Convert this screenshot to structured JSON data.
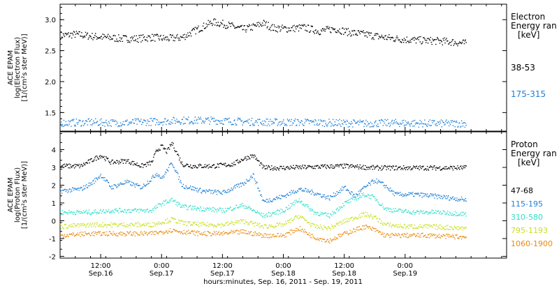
{
  "chart_data": [
    {
      "type": "scatter",
      "panel": "electron",
      "ylabel_lines": [
        "ACE EPAM",
        "log(Electron Flux)",
        "[1/(cm²s ster MeV)]"
      ],
      "ylim": [
        1.2,
        3.25
      ],
      "yticks": [
        1.5,
        2.0,
        2.5,
        3.0
      ],
      "ytick_labels": [
        "1.5",
        "2.0",
        "2.5",
        "3.0"
      ],
      "legend_title": [
        "Electron",
        "Energy ran",
        "[keV]"
      ],
      "series": [
        {
          "name": "38-53",
          "color": "#000000",
          "x": [
            0,
            3,
            6,
            9,
            12,
            15,
            18,
            21,
            24,
            27,
            30,
            33,
            36,
            38,
            40,
            42,
            45,
            48,
            51,
            54,
            57,
            60,
            63,
            66,
            69,
            72,
            75,
            78,
            80
          ],
          "y": [
            2.75,
            2.77,
            2.74,
            2.72,
            2.7,
            2.7,
            2.72,
            2.7,
            2.72,
            2.85,
            2.97,
            2.92,
            2.85,
            2.89,
            2.95,
            2.87,
            2.86,
            2.88,
            2.82,
            2.86,
            2.8,
            2.77,
            2.73,
            2.7,
            2.68,
            2.67,
            2.66,
            2.64,
            2.62
          ]
        },
        {
          "name": "175-315",
          "color": "#1f7fd6",
          "x": [
            0,
            6,
            12,
            18,
            24,
            30,
            36,
            42,
            48,
            54,
            60,
            66,
            72,
            80
          ],
          "y": [
            1.34,
            1.35,
            1.34,
            1.36,
            1.38,
            1.38,
            1.36,
            1.35,
            1.35,
            1.34,
            1.33,
            1.34,
            1.33,
            1.33
          ]
        }
      ]
    },
    {
      "type": "scatter",
      "panel": "proton",
      "ylabel_lines": [
        "ACE EPAM",
        "log(Proton Flux)",
        "[1/(cm²s ster MeV)]"
      ],
      "ylim": [
        -2.1,
        5.0
      ],
      "yticks": [
        -2,
        -1,
        0,
        1,
        2,
        3,
        4
      ],
      "ytick_labels": [
        "-2",
        "-1",
        "0",
        "1",
        "2",
        "3",
        "4"
      ],
      "legend_title": [
        "Proton",
        "Energy ran",
        "[keV]"
      ],
      "series": [
        {
          "name": "47-68",
          "color": "#000000",
          "x": [
            0,
            4,
            6,
            8,
            10,
            13,
            16,
            18,
            19,
            20,
            21,
            22,
            24,
            26,
            30,
            34,
            36,
            38,
            40,
            44,
            50,
            56,
            62,
            68,
            74,
            80
          ],
          "y": [
            3.1,
            3.1,
            3.4,
            3.7,
            3.3,
            3.4,
            3.1,
            3.3,
            4.0,
            4.2,
            3.9,
            4.4,
            3.2,
            3.1,
            3.1,
            3.2,
            3.5,
            3.7,
            3.0,
            3.0,
            3.05,
            3.1,
            3.0,
            3.0,
            3.0,
            3.0
          ]
        },
        {
          "name": "115-195",
          "color": "#1f7fd6",
          "x": [
            0,
            4,
            6,
            8,
            10,
            13,
            16,
            18,
            19,
            20,
            22,
            24,
            28,
            32,
            36,
            38,
            40,
            44,
            47,
            50,
            53,
            56,
            58,
            60,
            62,
            64,
            66,
            68,
            70,
            74,
            80
          ],
          "y": [
            1.7,
            1.8,
            2.1,
            2.6,
            1.9,
            2.2,
            1.9,
            2.4,
            2.7,
            2.4,
            3.3,
            2.0,
            1.7,
            1.6,
            2.1,
            2.6,
            1.1,
            1.4,
            1.8,
            1.6,
            1.3,
            1.9,
            1.4,
            1.9,
            2.3,
            2.0,
            1.5,
            1.5,
            1.5,
            1.4,
            1.2
          ]
        },
        {
          "name": "310-580",
          "color": "#2fe0c8",
          "x": [
            0,
            6,
            10,
            14,
            18,
            20,
            22,
            24,
            28,
            32,
            36,
            40,
            44,
            47,
            50,
            53,
            56,
            60,
            62,
            64,
            66,
            70,
            74,
            80
          ],
          "y": [
            0.5,
            0.5,
            0.6,
            0.6,
            0.6,
            1.0,
            1.2,
            0.8,
            0.7,
            0.6,
            0.9,
            0.3,
            0.6,
            1.2,
            0.5,
            0.3,
            1.0,
            1.5,
            1.3,
            0.7,
            0.6,
            0.5,
            0.5,
            0.4
          ]
        },
        {
          "name": "795-1193",
          "color": "#c8e020",
          "x": [
            0,
            6,
            10,
            14,
            18,
            22,
            24,
            28,
            32,
            36,
            40,
            44,
            47,
            50,
            53,
            56,
            60,
            62,
            64,
            68,
            72,
            80
          ],
          "y": [
            -0.3,
            -0.2,
            -0.2,
            -0.2,
            -0.2,
            0.1,
            -0.1,
            -0.2,
            -0.2,
            0.0,
            -0.3,
            -0.2,
            0.3,
            -0.3,
            -0.4,
            0.0,
            0.4,
            0.2,
            -0.2,
            -0.3,
            -0.3,
            -0.4
          ]
        },
        {
          "name": "1060-1900",
          "color": "#e88c12",
          "x": [
            0,
            6,
            10,
            14,
            18,
            22,
            24,
            28,
            32,
            36,
            40,
            44,
            47,
            50,
            53,
            56,
            60,
            62,
            64,
            68,
            72,
            80
          ],
          "y": [
            -0.8,
            -0.7,
            -0.7,
            -0.7,
            -0.7,
            -0.5,
            -0.6,
            -0.7,
            -0.7,
            -0.6,
            -0.8,
            -0.8,
            -0.4,
            -0.9,
            -1.1,
            -0.7,
            -0.3,
            -0.5,
            -0.8,
            -0.8,
            -0.8,
            -0.9
          ]
        }
      ]
    }
  ],
  "x_axis": {
    "title": "hours:minutes, Sep. 16, 2011 - Sep. 19, 2011",
    "xlim_hours": [
      0,
      88
    ],
    "ticks": [
      {
        "hour": 8,
        "time": "12:00",
        "date": "Sep.16"
      },
      {
        "hour": 20,
        "time": "0:00",
        "date": "Sep.17"
      },
      {
        "hour": 32,
        "time": "12:00",
        "date": "Sep.17"
      },
      {
        "hour": 44,
        "time": "0:00",
        "date": "Sep.18"
      },
      {
        "hour": 56,
        "time": "12:00",
        "date": "Sep.18"
      },
      {
        "hour": 68,
        "time": "0:00",
        "date": "Sep.19"
      }
    ]
  },
  "colors": {
    "axis": "#000000",
    "background": "#ffffff"
  }
}
